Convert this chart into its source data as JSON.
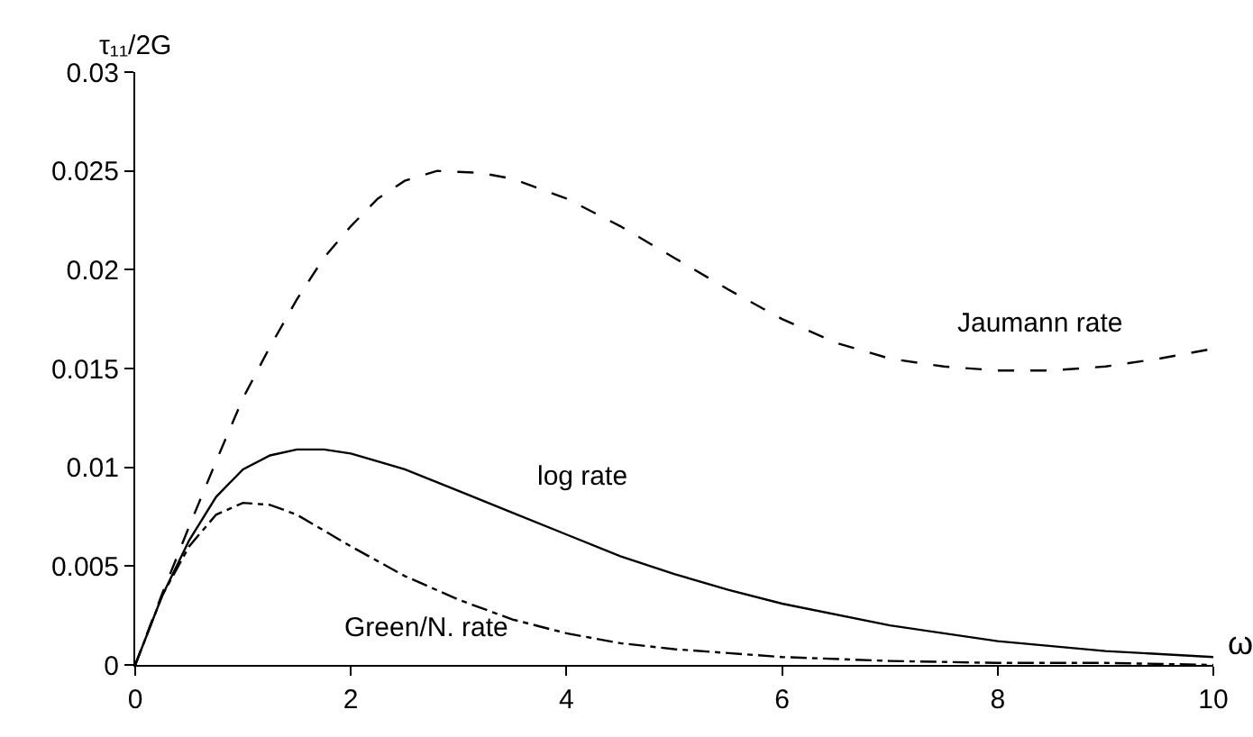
{
  "chart_data": {
    "type": "line",
    "xlabel": "ω",
    "ylabel": "τ₁₁/2G",
    "xlim": [
      0,
      10
    ],
    "ylim": [
      0,
      0.03
    ],
    "xticks": [
      0,
      2,
      4,
      6,
      8,
      10
    ],
    "yticks": [
      0,
      0.005,
      0.01,
      0.015,
      0.02,
      0.025,
      0.03
    ],
    "grid": false,
    "legend": false,
    "marker": "none",
    "series": [
      {
        "name": "Jaumann rate",
        "color": "#000000",
        "line_style": "dashed",
        "x": [
          0,
          0.25,
          0.5,
          0.75,
          1,
          1.25,
          1.5,
          1.75,
          2,
          2.25,
          2.5,
          2.8,
          3.2,
          3.5,
          4,
          4.5,
          5,
          5.5,
          6,
          6.5,
          7,
          7.5,
          8,
          8.5,
          9,
          9.5,
          10
        ],
        "values": [
          0,
          0.0036,
          0.007,
          0.0103,
          0.0135,
          0.0161,
          0.0185,
          0.0206,
          0.0222,
          0.0236,
          0.0245,
          0.025,
          0.0249,
          0.0246,
          0.0236,
          0.0222,
          0.0206,
          0.019,
          0.0175,
          0.0163,
          0.0155,
          0.0151,
          0.0149,
          0.0149,
          0.0151,
          0.0155,
          0.016
        ]
      },
      {
        "name": "log rate",
        "color": "#000000",
        "line_style": "solid",
        "x": [
          0,
          0.25,
          0.5,
          0.75,
          1,
          1.25,
          1.5,
          1.75,
          2,
          2.5,
          3,
          3.5,
          4,
          4.5,
          5,
          5.5,
          6,
          7,
          8,
          9,
          10
        ],
        "values": [
          0,
          0.0035,
          0.0063,
          0.0085,
          0.0099,
          0.0106,
          0.0109,
          0.0109,
          0.0107,
          0.0099,
          0.0088,
          0.0077,
          0.0066,
          0.0055,
          0.0046,
          0.0038,
          0.0031,
          0.002,
          0.0012,
          0.0007,
          0.0004
        ]
      },
      {
        "name": "Green/N. rate",
        "color": "#000000",
        "line_style": "dashdot",
        "x": [
          0,
          0.25,
          0.5,
          0.75,
          1,
          1.25,
          1.5,
          1.75,
          2,
          2.5,
          3,
          3.5,
          4,
          4.5,
          5,
          6,
          7,
          8,
          9,
          10
        ],
        "values": [
          0,
          0.0035,
          0.006,
          0.0076,
          0.0082,
          0.0081,
          0.0076,
          0.0068,
          0.006,
          0.0045,
          0.0033,
          0.0023,
          0.0016,
          0.0011,
          0.0008,
          0.0004,
          0.0002,
          0.0001,
          0.0001,
          0
        ]
      }
    ]
  }
}
